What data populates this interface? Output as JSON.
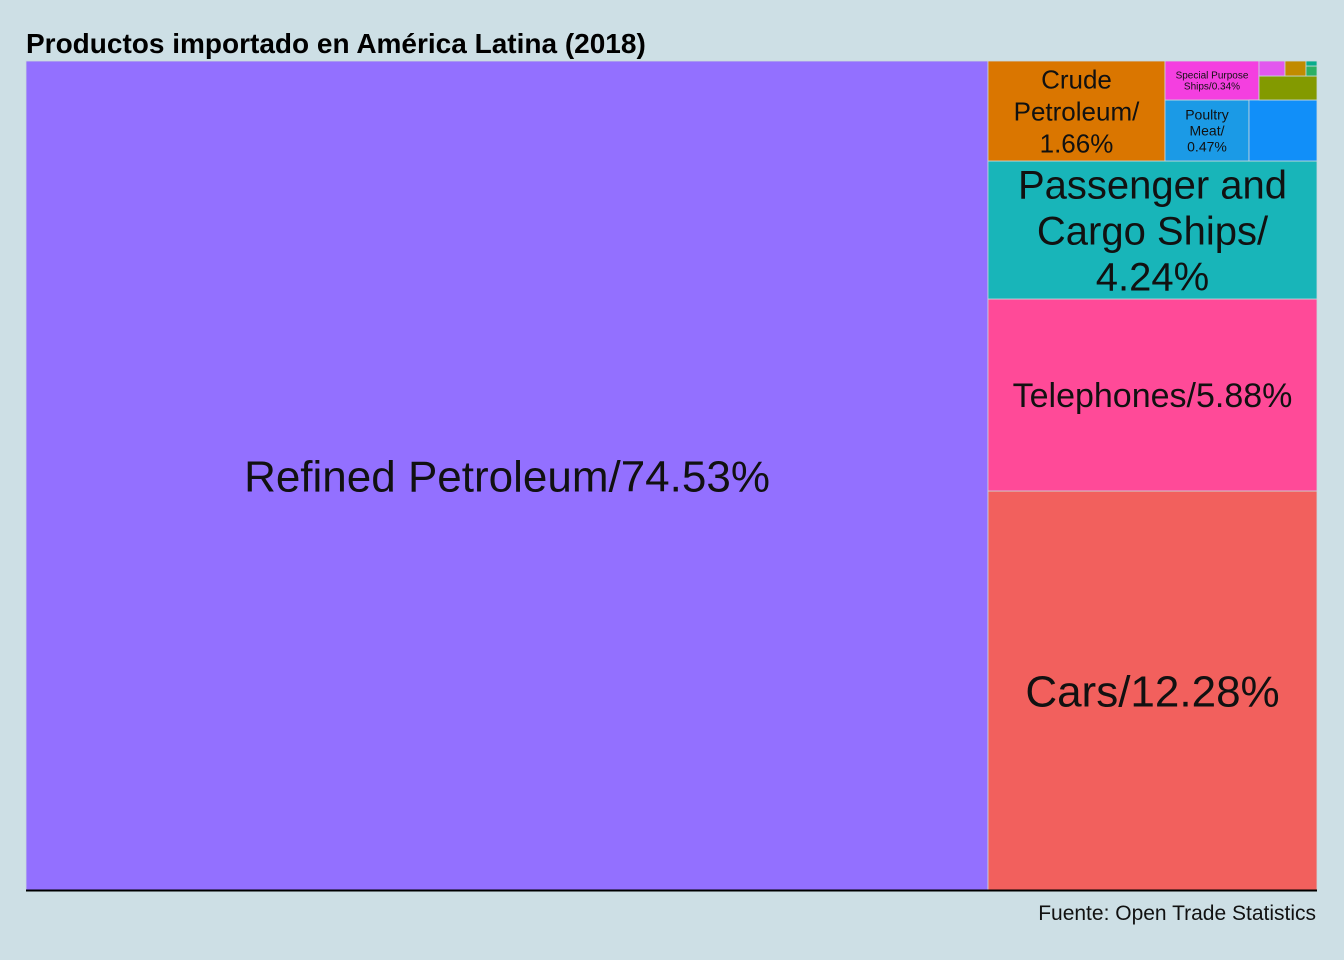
{
  "chart_data": {
    "type": "treemap",
    "title": "Productos importado en América Latina (2018)",
    "caption": "Fuente: Open Trade Statistics",
    "items": [
      {
        "label": "Refined Petroleum/74.53%",
        "lines": [
          "Refined Petroleum/74.53%"
        ],
        "value": 74.53,
        "color": "#9370ff"
      },
      {
        "label": "Cars/12.28%",
        "lines": [
          "Cars/12.28%"
        ],
        "value": 12.28,
        "color": "#f2605d"
      },
      {
        "label": "Telephones/5.88%",
        "lines": [
          "Telephones/5.88%"
        ],
        "value": 5.88,
        "color": "#ff4a98"
      },
      {
        "label": "Passenger and Cargo Ships/4.24%",
        "lines": [
          "Passenger and",
          "Cargo Ships/",
          "4.24%"
        ],
        "value": 4.24,
        "color": "#18b5b9"
      },
      {
        "label": "Crude Petroleum/1.66%",
        "lines": [
          "Crude",
          "Petroleum/",
          "1.66%"
        ],
        "value": 1.66,
        "color": "#da7600"
      },
      {
        "label": "Poultry Meat/0.47%",
        "lines": [
          "Poultry",
          "Meat/",
          "0.47%"
        ],
        "value": 0.47,
        "color": "#1b9ae6"
      },
      {
        "label": "Special Purpose Ships/0.34%",
        "lines": [
          "Special Purpose",
          "Ships/0.34%"
        ],
        "value": 0.34,
        "color": "#f43fe0"
      },
      {
        "label": "",
        "lines": [],
        "value": 0.38,
        "color": "#118ff9"
      },
      {
        "label": "",
        "lines": [],
        "value": 0.12,
        "color": "#839a00"
      },
      {
        "label": "",
        "lines": [],
        "value": 0.05,
        "color": "#e257ee"
      },
      {
        "label": "",
        "lines": [],
        "value": 0.04,
        "color": "#c18b00"
      },
      {
        "label": "",
        "lines": [],
        "value": 0.01,
        "color": "#2cb064"
      },
      {
        "label": "",
        "lines": [],
        "value": 0.01,
        "color": "#08ad8c"
      }
    ]
  }
}
